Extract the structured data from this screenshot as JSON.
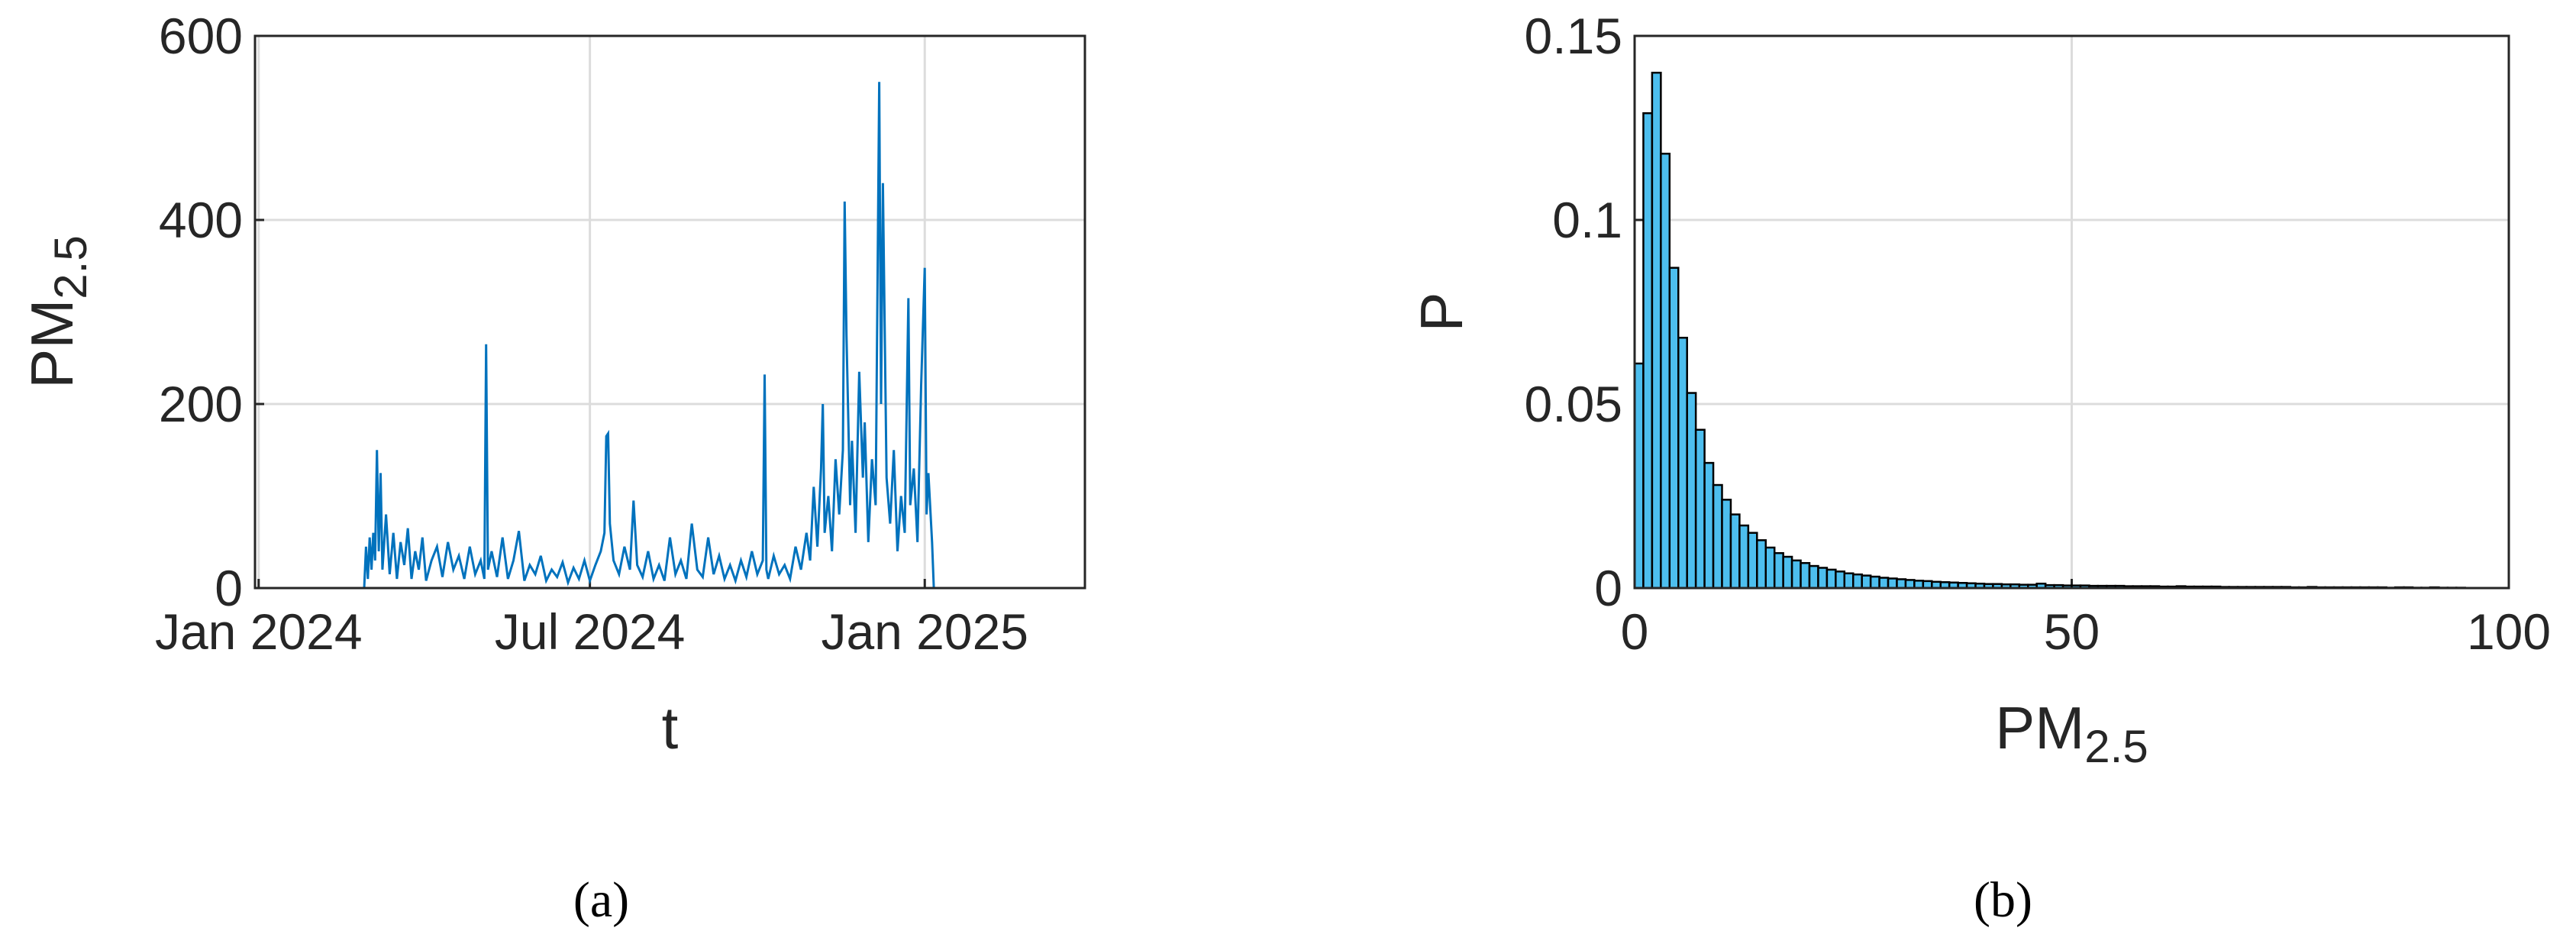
{
  "chart_data": [
    {
      "type": "line",
      "panel_label": "(a)",
      "xlabel": "t",
      "ylabel": {
        "text": "PM",
        "subscript": "2.5"
      },
      "xlim": [
        -2,
        454
      ],
      "ylim": [
        0,
        600
      ],
      "xticks": [
        {
          "value": 0,
          "label": "Jan 2024"
        },
        {
          "value": 182,
          "label": "Jul 2024"
        },
        {
          "value": 366,
          "label": "Jan 2025"
        }
      ],
      "yticks": [
        0,
        200,
        400,
        600
      ],
      "grid": true,
      "color": "#0072bd",
      "x": [
        -2,
        58,
        59,
        60,
        61,
        62,
        63,
        64,
        65,
        66,
        67,
        68,
        70,
        72,
        74,
        76,
        78,
        80,
        82,
        84,
        86,
        88,
        90,
        92,
        95,
        98,
        101,
        104,
        107,
        110,
        113,
        116,
        119,
        122,
        124,
        125,
        126,
        128,
        131,
        134,
        137,
        140,
        143,
        146,
        149,
        152,
        155,
        158,
        161,
        164,
        167,
        170,
        173,
        176,
        179,
        182,
        185,
        188,
        190,
        191,
        192,
        193,
        195,
        198,
        201,
        204,
        206,
        208,
        211,
        214,
        217,
        220,
        223,
        226,
        229,
        232,
        235,
        238,
        241,
        244,
        247,
        250,
        253,
        256,
        259,
        262,
        265,
        268,
        271,
        274,
        277,
        278,
        279,
        280,
        283,
        286,
        289,
        292,
        295,
        298,
        301,
        303,
        305,
        307,
        309,
        310,
        311,
        313,
        315,
        317,
        319,
        321,
        322,
        323,
        325,
        326,
        328,
        330,
        332,
        333,
        335,
        337,
        339,
        341,
        342,
        343,
        344,
        345,
        347,
        349,
        351,
        353,
        355,
        357,
        358,
        360,
        362,
        364,
        366,
        367,
        368,
        370,
        371,
        372,
        454
      ],
      "values": [
        0,
        0,
        45,
        10,
        55,
        20,
        60,
        30,
        150,
        40,
        125,
        20,
        80,
        15,
        60,
        10,
        50,
        25,
        65,
        10,
        40,
        20,
        55,
        8,
        30,
        45,
        12,
        50,
        20,
        35,
        10,
        45,
        15,
        30,
        10,
        265,
        20,
        40,
        12,
        55,
        10,
        30,
        62,
        8,
        25,
        15,
        35,
        8,
        20,
        12,
        28,
        6,
        22,
        10,
        30,
        8,
        25,
        40,
        60,
        165,
        168,
        70,
        30,
        15,
        45,
        20,
        95,
        25,
        12,
        40,
        10,
        25,
        8,
        55,
        15,
        30,
        10,
        70,
        20,
        12,
        55,
        15,
        35,
        10,
        25,
        8,
        30,
        12,
        40,
        15,
        30,
        232,
        20,
        10,
        35,
        15,
        25,
        10,
        45,
        20,
        60,
        30,
        110,
        45,
        130,
        200,
        60,
        100,
        40,
        140,
        80,
        150,
        420,
        275,
        90,
        160,
        60,
        235,
        120,
        180,
        50,
        140,
        90,
        550,
        200,
        440,
        280,
        120,
        70,
        150,
        40,
        100,
        60,
        315,
        90,
        130,
        50,
        220,
        348,
        80,
        125,
        50,
        0,
        0,
        0
      ]
    },
    {
      "type": "histogram",
      "panel_label": "(b)",
      "xlabel": {
        "text": "PM",
        "subscript": "2.5"
      },
      "ylabel": "P",
      "xlim": [
        0,
        100
      ],
      "ylim": [
        0,
        0.15
      ],
      "xticks": [
        0,
        50,
        100
      ],
      "yticks": [
        0,
        0.05,
        0.1,
        0.15
      ],
      "grid": true,
      "color": "#4dbeee",
      "edgecolor": "#000000",
      "bins": [
        0,
        1,
        2,
        3,
        4,
        5,
        6,
        7,
        8,
        9,
        10,
        11,
        12,
        13,
        14,
        15,
        16,
        17,
        18,
        19,
        20,
        21,
        22,
        23,
        24,
        25,
        26,
        27,
        28,
        29,
        30,
        31,
        32,
        33,
        34,
        35,
        36,
        37,
        38,
        39,
        40,
        41,
        42,
        43,
        44,
        45,
        46,
        47,
        48,
        49,
        50,
        51,
        52,
        53,
        54,
        55,
        56,
        57,
        58,
        59,
        60,
        61,
        62,
        63,
        64,
        65,
        66,
        67,
        68,
        69,
        70,
        71,
        72,
        73,
        74,
        75,
        76,
        77,
        78,
        79,
        80,
        81,
        82,
        83,
        84,
        85,
        86,
        87,
        88,
        89,
        90,
        91,
        92,
        93,
        94,
        95
      ],
      "values": [
        0.061,
        0.129,
        0.14,
        0.118,
        0.087,
        0.068,
        0.053,
        0.043,
        0.034,
        0.028,
        0.024,
        0.02,
        0.017,
        0.015,
        0.013,
        0.011,
        0.0095,
        0.0085,
        0.0075,
        0.0068,
        0.006,
        0.0055,
        0.005,
        0.0045,
        0.004,
        0.0037,
        0.0034,
        0.0031,
        0.0028,
        0.0026,
        0.0024,
        0.0022,
        0.002,
        0.0019,
        0.0017,
        0.0016,
        0.0015,
        0.0014,
        0.0013,
        0.0012,
        0.0011,
        0.0011,
        0.001,
        0.001,
        0.0009,
        0.0009,
        0.0012,
        0.0008,
        0.0008,
        0.0007,
        0.0007,
        0.0007,
        0.0006,
        0.0006,
        0.0006,
        0.0006,
        0.0005,
        0.0005,
        0.0005,
        0.0005,
        0.0004,
        0.0004,
        0.0005,
        0.0004,
        0.0004,
        0.0004,
        0.0004,
        0.0003,
        0.0003,
        0.0003,
        0.0003,
        0.0003,
        0.0003,
        0.0003,
        0.0003,
        0.0002,
        0.0002,
        0.0003,
        0.0002,
        0.0002,
        0.0002,
        0.0002,
        0.0002,
        0.0002,
        0.0002,
        0.0002,
        0.0001,
        0.0002,
        0.0002,
        0.0001,
        0.0001,
        0.0002,
        0.0001,
        0.0001,
        0.0001
      ]
    }
  ]
}
